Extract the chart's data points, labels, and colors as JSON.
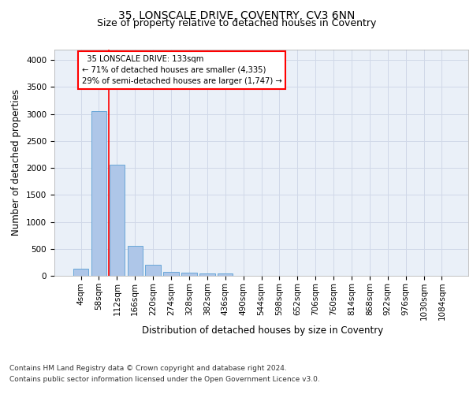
{
  "title_line1": "35, LONSCALE DRIVE, COVENTRY, CV3 6NN",
  "title_line2": "Size of property relative to detached houses in Coventry",
  "xlabel": "Distribution of detached houses by size in Coventry",
  "ylabel": "Number of detached properties",
  "bar_labels": [
    "4sqm",
    "58sqm",
    "112sqm",
    "166sqm",
    "220sqm",
    "274sqm",
    "328sqm",
    "382sqm",
    "436sqm",
    "490sqm",
    "544sqm",
    "598sqm",
    "652sqm",
    "706sqm",
    "760sqm",
    "814sqm",
    "868sqm",
    "922sqm",
    "976sqm",
    "1030sqm",
    "1084sqm"
  ],
  "bar_heights": [
    130,
    3060,
    2060,
    560,
    200,
    80,
    55,
    40,
    40,
    0,
    0,
    0,
    0,
    0,
    0,
    0,
    0,
    0,
    0,
    0,
    0
  ],
  "bar_color": "#aec6e8",
  "bar_edge_color": "#5a9fd4",
  "vline_color": "red",
  "vline_pos": 1.55,
  "annotation_text": "  35 LONSCALE DRIVE: 133sqm\n← 71% of detached houses are smaller (4,335)\n29% of semi-detached houses are larger (1,747) →",
  "ylim": [
    0,
    4200
  ],
  "yticks": [
    0,
    500,
    1000,
    1500,
    2000,
    2500,
    3000,
    3500,
    4000
  ],
  "grid_color": "#d0d8e8",
  "bg_color": "#eaf0f8",
  "footer_line1": "Contains HM Land Registry data © Crown copyright and database right 2024.",
  "footer_line2": "Contains public sector information licensed under the Open Government Licence v3.0.",
  "title_fontsize": 10,
  "subtitle_fontsize": 9,
  "axis_label_fontsize": 8.5,
  "tick_fontsize": 7.5,
  "footer_fontsize": 6.5
}
